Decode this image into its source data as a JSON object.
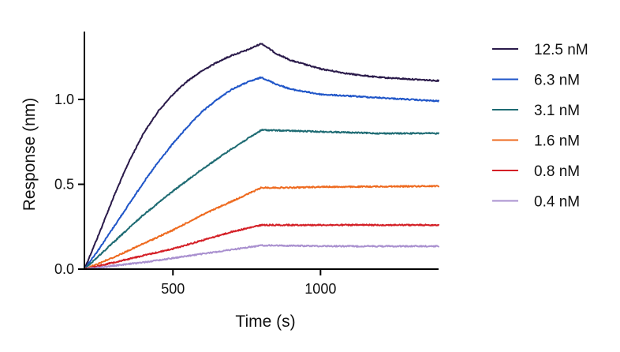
{
  "chart_data": {
    "type": "line",
    "title": "",
    "xlabel": "Time (s)",
    "ylabel": "Response (nm)",
    "xlim": [
      200,
      1400
    ],
    "ylim": [
      0,
      1.4
    ],
    "x_ticks": [
      500,
      1000
    ],
    "y_ticks": [
      0.0,
      0.5,
      1.0
    ],
    "x_tick_labels": [
      "500",
      "1000"
    ],
    "y_tick_labels": [
      "0.0",
      "0.5",
      "1.0"
    ],
    "grid": false,
    "legend_position": "right",
    "association_start": 200,
    "dissociation_start": 800,
    "series": [
      {
        "name": "12.5 nM",
        "color": "#2a1a4a",
        "points": [
          [
            200,
            0.0
          ],
          [
            250,
            0.21
          ],
          [
            300,
            0.43
          ],
          [
            350,
            0.63
          ],
          [
            400,
            0.8
          ],
          [
            450,
            0.93
          ],
          [
            500,
            1.03
          ],
          [
            550,
            1.11
          ],
          [
            600,
            1.17
          ],
          [
            650,
            1.22
          ],
          [
            700,
            1.26
          ],
          [
            750,
            1.29
          ],
          [
            800,
            1.33
          ],
          [
            850,
            1.27
          ],
          [
            900,
            1.23
          ],
          [
            1000,
            1.18
          ],
          [
            1100,
            1.15
          ],
          [
            1200,
            1.13
          ],
          [
            1300,
            1.12
          ],
          [
            1400,
            1.11
          ]
        ]
      },
      {
        "name": "6.3 nM",
        "color": "#1f55c8",
        "points": [
          [
            200,
            0.0
          ],
          [
            250,
            0.12
          ],
          [
            300,
            0.25
          ],
          [
            350,
            0.38
          ],
          [
            400,
            0.51
          ],
          [
            450,
            0.63
          ],
          [
            500,
            0.74
          ],
          [
            550,
            0.84
          ],
          [
            600,
            0.93
          ],
          [
            650,
            1.0
          ],
          [
            700,
            1.06
          ],
          [
            750,
            1.1
          ],
          [
            800,
            1.13
          ],
          [
            850,
            1.09
          ],
          [
            900,
            1.06
          ],
          [
            1000,
            1.03
          ],
          [
            1100,
            1.02
          ],
          [
            1200,
            1.01
          ],
          [
            1300,
            1.0
          ],
          [
            1400,
            0.99
          ]
        ]
      },
      {
        "name": "3.1 nM",
        "color": "#1e6b73",
        "points": [
          [
            200,
            0.0
          ],
          [
            300,
            0.16
          ],
          [
            400,
            0.32
          ],
          [
            500,
            0.46
          ],
          [
            600,
            0.59
          ],
          [
            700,
            0.71
          ],
          [
            800,
            0.82
          ],
          [
            900,
            0.815
          ],
          [
            1000,
            0.81
          ],
          [
            1100,
            0.805
          ],
          [
            1200,
            0.8
          ],
          [
            1300,
            0.8
          ],
          [
            1400,
            0.8
          ]
        ]
      },
      {
        "name": "1.6 nM",
        "color": "#ee6a1f",
        "points": [
          [
            200,
            0.0
          ],
          [
            300,
            0.07
          ],
          [
            400,
            0.15
          ],
          [
            500,
            0.23
          ],
          [
            600,
            0.32
          ],
          [
            700,
            0.4
          ],
          [
            800,
            0.48
          ],
          [
            900,
            0.48
          ],
          [
            1000,
            0.485
          ],
          [
            1100,
            0.485
          ],
          [
            1200,
            0.487
          ],
          [
            1300,
            0.488
          ],
          [
            1400,
            0.49
          ]
        ]
      },
      {
        "name": "0.8 nM",
        "color": "#d41f26",
        "points": [
          [
            200,
            0.0
          ],
          [
            300,
            0.04
          ],
          [
            400,
            0.08
          ],
          [
            500,
            0.12
          ],
          [
            600,
            0.17
          ],
          [
            700,
            0.22
          ],
          [
            800,
            0.26
          ],
          [
            900,
            0.26
          ],
          [
            1000,
            0.26
          ],
          [
            1100,
            0.26
          ],
          [
            1200,
            0.26
          ],
          [
            1300,
            0.26
          ],
          [
            1400,
            0.26
          ]
        ]
      },
      {
        "name": "0.4 nM",
        "color": "#a990cf",
        "points": [
          [
            200,
            0.0
          ],
          [
            300,
            0.02
          ],
          [
            400,
            0.04
          ],
          [
            500,
            0.065
          ],
          [
            600,
            0.09
          ],
          [
            700,
            0.115
          ],
          [
            800,
            0.14
          ],
          [
            900,
            0.138
          ],
          [
            1000,
            0.136
          ],
          [
            1100,
            0.135
          ],
          [
            1200,
            0.135
          ],
          [
            1300,
            0.135
          ],
          [
            1400,
            0.135
          ]
        ]
      }
    ]
  }
}
